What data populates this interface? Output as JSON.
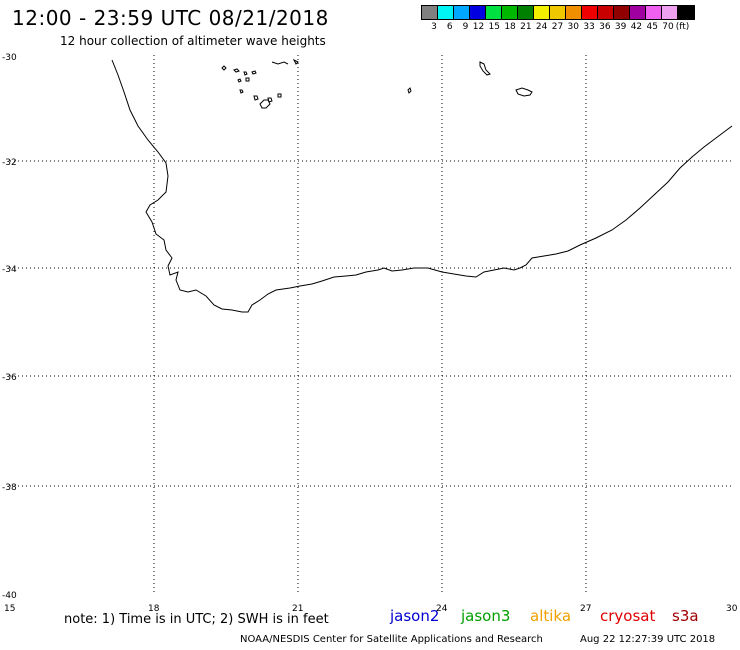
{
  "title": "12:00 - 23:59 UTC 08/21/2018",
  "subtitle": "12 hour collection of altimeter wave heights",
  "legend": {
    "colors": [
      "#808080",
      "#00f5f5",
      "#00a8ff",
      "#0000e0",
      "#00e040",
      "#00b800",
      "#008000",
      "#f0f000",
      "#f0c800",
      "#f09000",
      "#f00000",
      "#c80000",
      "#900000",
      "#a000a0",
      "#f060f0",
      "#f0a0f0",
      "#000000"
    ],
    "labels": [
      "3",
      "6",
      "9",
      "12",
      "15",
      "18",
      "21",
      "24",
      "27",
      "30",
      "33",
      "36",
      "39",
      "42",
      "45",
      "70"
    ],
    "unit": "(ft)"
  },
  "axes": {
    "lat_labels": [
      "-30",
      "-32",
      "-34",
      "-36",
      "-38",
      "-40"
    ],
    "lon_labels": [
      "15",
      "18",
      "21",
      "24",
      "27",
      "30"
    ]
  },
  "note": "note: 1) Time is in UTC; 2) SWH is in feet",
  "satellites": [
    {
      "name": "jason2",
      "color": "#0000d0"
    },
    {
      "name": "jason3",
      "color": "#00a000"
    },
    {
      "name": "altika",
      "color": "#f0a000"
    },
    {
      "name": "cryosat",
      "color": "#e00000"
    },
    {
      "name": "s3a",
      "color": "#a00000"
    }
  ],
  "credit": "NOAA/NESDIS Center for Satellite Applications and Research",
  "timestamp": "Aug 22 12:27:39 UTC 2018"
}
